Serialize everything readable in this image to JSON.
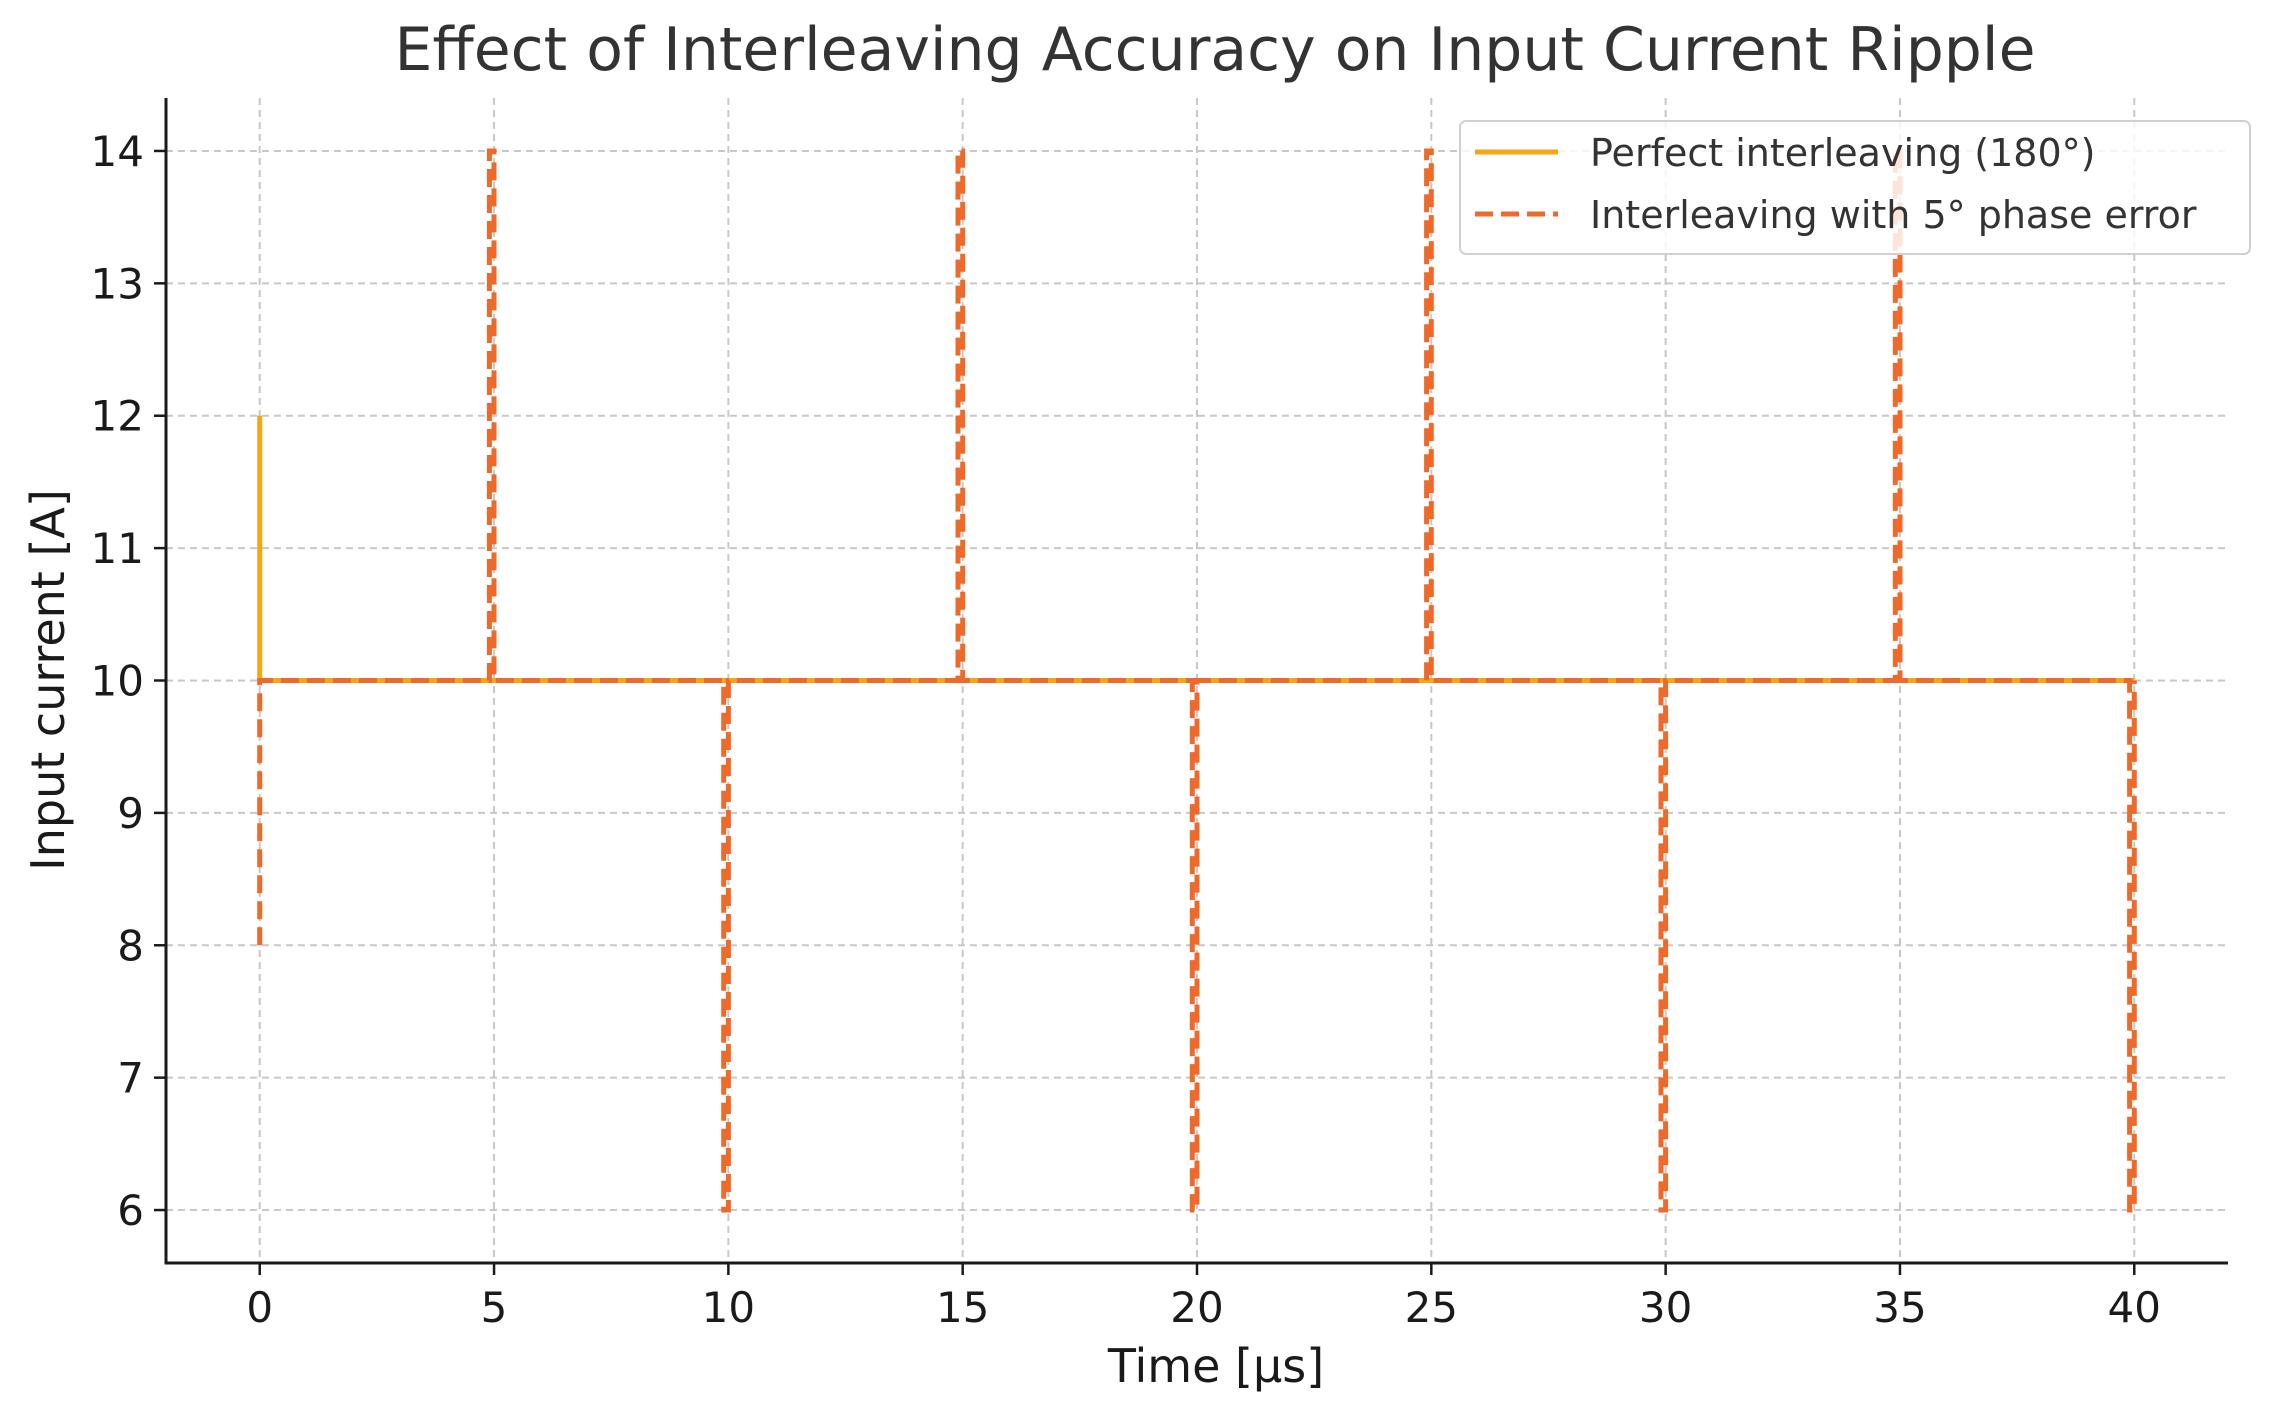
{
  "chart_data": {
    "type": "line",
    "title": "Effect of Interleaving Accuracy on Input Current Ripple",
    "xlabel": "Time [μs]",
    "ylabel": "Input current [A]",
    "xlim": [
      -2,
      42
    ],
    "ylim": [
      5.6,
      14.4
    ],
    "xticks": [
      0,
      5,
      10,
      15,
      20,
      25,
      30,
      35,
      40
    ],
    "yticks": [
      6,
      7,
      8,
      9,
      10,
      11,
      12,
      13,
      14
    ],
    "grid": true,
    "legend_position": "top-right",
    "series": [
      {
        "name": "Perfect interleaving (180°)",
        "color": "#f5a614",
        "style": "solid",
        "points": [
          [
            0,
            12
          ],
          [
            0,
            10
          ],
          [
            40,
            10
          ]
        ]
      },
      {
        "name": "Interleaving with 5° phase error",
        "color": "#ee6a2a",
        "style": "dashed",
        "points": [
          [
            0,
            8
          ],
          [
            0,
            10
          ],
          [
            4.9,
            10
          ],
          [
            4.9,
            14
          ],
          [
            5.0,
            14
          ],
          [
            5.0,
            10
          ],
          [
            9.9,
            10
          ],
          [
            9.9,
            6
          ],
          [
            10.0,
            6
          ],
          [
            10.0,
            10
          ],
          [
            14.9,
            10
          ],
          [
            14.9,
            14
          ],
          [
            15.0,
            14
          ],
          [
            15.0,
            10
          ],
          [
            19.9,
            10
          ],
          [
            19.9,
            6
          ],
          [
            20.0,
            6
          ],
          [
            20.0,
            10
          ],
          [
            24.9,
            10
          ],
          [
            24.9,
            14
          ],
          [
            25.0,
            14
          ],
          [
            25.0,
            10
          ],
          [
            29.9,
            10
          ],
          [
            29.9,
            6
          ],
          [
            30.0,
            6
          ],
          [
            30.0,
            10
          ],
          [
            34.9,
            10
          ],
          [
            34.9,
            14
          ],
          [
            35.0,
            14
          ],
          [
            35.0,
            10
          ],
          [
            39.9,
            10
          ],
          [
            39.9,
            6
          ],
          [
            40.0,
            6
          ],
          [
            40.0,
            10
          ]
        ]
      }
    ]
  }
}
